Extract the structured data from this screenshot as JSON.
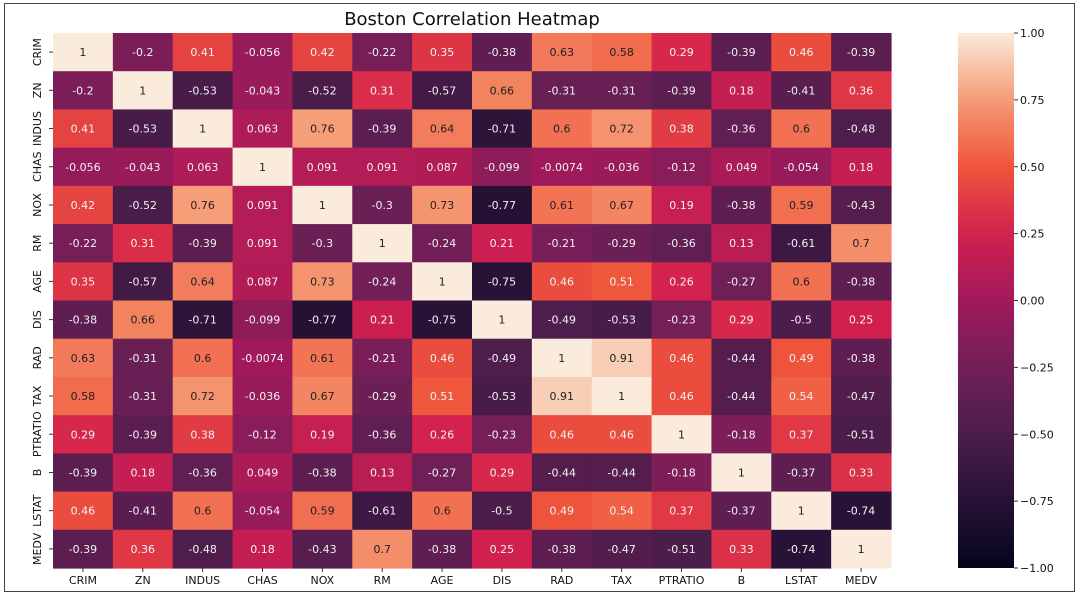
{
  "chart_data": {
    "type": "heatmap",
    "title": "Boston Correlation Heatmap",
    "xlabel": "",
    "ylabel": "",
    "categories": [
      "CRIM",
      "ZN",
      "INDUS",
      "CHAS",
      "NOX",
      "RM",
      "AGE",
      "DIS",
      "RAD",
      "TAX",
      "PTRATIO",
      "B",
      "LSTAT",
      "MEDV"
    ],
    "values": [
      [
        1,
        -0.2,
        0.41,
        -0.056,
        0.42,
        -0.22,
        0.35,
        -0.38,
        0.63,
        0.58,
        0.29,
        -0.39,
        0.46,
        -0.39
      ],
      [
        -0.2,
        1,
        -0.53,
        -0.043,
        -0.52,
        0.31,
        -0.57,
        0.66,
        -0.31,
        -0.31,
        -0.39,
        0.18,
        -0.41,
        0.36
      ],
      [
        0.41,
        -0.53,
        1,
        0.063,
        0.76,
        -0.39,
        0.64,
        -0.71,
        0.6,
        0.72,
        0.38,
        -0.36,
        0.6,
        -0.48
      ],
      [
        -0.056,
        -0.043,
        0.063,
        1,
        0.091,
        0.091,
        0.087,
        -0.099,
        -0.0074,
        -0.036,
        -0.12,
        0.049,
        -0.054,
        0.18
      ],
      [
        0.42,
        -0.52,
        0.76,
        0.091,
        1,
        -0.3,
        0.73,
        -0.77,
        0.61,
        0.67,
        0.19,
        -0.38,
        0.59,
        -0.43
      ],
      [
        -0.22,
        0.31,
        -0.39,
        0.091,
        -0.3,
        1,
        -0.24,
        0.21,
        -0.21,
        -0.29,
        -0.36,
        0.13,
        -0.61,
        0.7
      ],
      [
        0.35,
        -0.57,
        0.64,
        0.087,
        0.73,
        -0.24,
        1,
        -0.75,
        0.46,
        0.51,
        0.26,
        -0.27,
        0.6,
        -0.38
      ],
      [
        -0.38,
        0.66,
        -0.71,
        -0.099,
        -0.77,
        0.21,
        -0.75,
        1,
        -0.49,
        -0.53,
        -0.23,
        0.29,
        -0.5,
        0.25
      ],
      [
        0.63,
        -0.31,
        0.6,
        -0.0074,
        0.61,
        -0.21,
        0.46,
        -0.49,
        1,
        0.91,
        0.46,
        -0.44,
        0.49,
        -0.38
      ],
      [
        0.58,
        -0.31,
        0.72,
        -0.036,
        0.67,
        -0.29,
        0.51,
        -0.53,
        0.91,
        1,
        0.46,
        -0.44,
        0.54,
        -0.47
      ],
      [
        0.29,
        -0.39,
        0.38,
        -0.12,
        0.19,
        -0.36,
        0.26,
        -0.23,
        0.46,
        0.46,
        1,
        -0.18,
        0.37,
        -0.51
      ],
      [
        -0.39,
        0.18,
        -0.36,
        0.049,
        -0.38,
        0.13,
        -0.27,
        0.29,
        -0.44,
        -0.44,
        -0.18,
        1,
        -0.37,
        0.33
      ],
      [
        0.46,
        -0.41,
        0.6,
        -0.054,
        0.59,
        -0.61,
        0.6,
        -0.5,
        0.49,
        0.54,
        0.37,
        -0.37,
        1,
        -0.74
      ],
      [
        -0.39,
        0.36,
        -0.48,
        0.18,
        -0.43,
        0.7,
        -0.38,
        0.25,
        -0.38,
        -0.47,
        -0.51,
        0.33,
        -0.74,
        1
      ]
    ],
    "colorbar": {
      "range": [
        -1.0,
        1.0
      ],
      "ticks": [
        1.0,
        0.75,
        0.5,
        0.25,
        0.0,
        -0.25,
        -0.5,
        -0.75,
        -1.0
      ],
      "tick_labels": [
        "1.00",
        "0.75",
        "0.50",
        "0.25",
        "0.00",
        "−0.25",
        "−0.50",
        "−0.75",
        "−1.00"
      ],
      "colormap": "rocket",
      "color_low": "#03051a",
      "color_high": "#faebdd"
    },
    "annotations": true,
    "grid": false
  }
}
